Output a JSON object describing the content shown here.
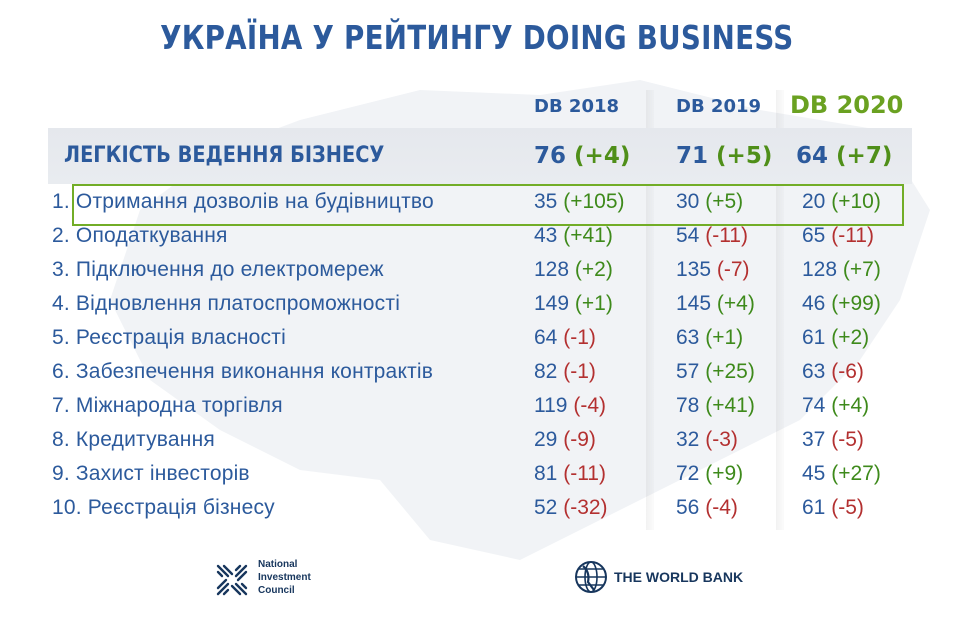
{
  "title": "УКРАЇНА У РЕЙТИНГУ DOING BUSINESS",
  "columns": [
    "DB 2018",
    "DB 2019",
    "DB 2020"
  ],
  "colors": {
    "blue": "#2c5a9c",
    "green": "#6aa121",
    "positive": "#3e8a1b",
    "negative": "#b33030",
    "band": "#e7eaee"
  },
  "ease": {
    "label": "ЛЕГКІСТЬ ВЕДЕННЯ БІЗНЕСУ",
    "values": [
      {
        "rank": "76",
        "change": "(+4)"
      },
      {
        "rank": "71",
        "change": "(+5)"
      },
      {
        "rank": "64",
        "change": "(+7)"
      }
    ]
  },
  "rows": [
    {
      "num": "1.",
      "label": "Отримання дозволів на будівництво",
      "highlighted": true,
      "values": [
        {
          "rank": "35",
          "change": "(+105)",
          "sign": "pos"
        },
        {
          "rank": "30",
          "change": "(+5)",
          "sign": "pos"
        },
        {
          "rank": "20",
          "change": "(+10)",
          "sign": "pos"
        }
      ]
    },
    {
      "num": "2.",
      "label": "Оподаткування",
      "values": [
        {
          "rank": "43",
          "change": "(+41)",
          "sign": "pos"
        },
        {
          "rank": "54",
          "change": "(-11)",
          "sign": "neg"
        },
        {
          "rank": "65",
          "change": "(-11)",
          "sign": "neg"
        }
      ]
    },
    {
      "num": "3.",
      "label": "Підключення до електромереж",
      "values": [
        {
          "rank": "128",
          "change": "(+2)",
          "sign": "pos"
        },
        {
          "rank": "135",
          "change": "(-7)",
          "sign": "neg"
        },
        {
          "rank": "128",
          "change": "(+7)",
          "sign": "pos"
        }
      ]
    },
    {
      "num": "4.",
      "label": "Відновлення платоспроможності",
      "values": [
        {
          "rank": "149",
          "change": "(+1)",
          "sign": "pos"
        },
        {
          "rank": "145",
          "change": "(+4)",
          "sign": "pos"
        },
        {
          "rank": "46",
          "change": "(+99)",
          "sign": "pos"
        }
      ]
    },
    {
      "num": "5.",
      "label": "Реєстрація власності",
      "values": [
        {
          "rank": "64",
          "change": "(-1)",
          "sign": "neg"
        },
        {
          "rank": "63",
          "change": "(+1)",
          "sign": "pos"
        },
        {
          "rank": "61",
          "change": "(+2)",
          "sign": "pos"
        }
      ]
    },
    {
      "num": "6.",
      "label": "Забезпечення виконання контрактів",
      "values": [
        {
          "rank": "82",
          "change": "(-1)",
          "sign": "neg"
        },
        {
          "rank": "57",
          "change": "(+25)",
          "sign": "pos"
        },
        {
          "rank": "63",
          "change": "(-6)",
          "sign": "neg"
        }
      ]
    },
    {
      "num": "7.",
      "label": "Міжнародна торгівля",
      "values": [
        {
          "rank": "119",
          "change": "(-4)",
          "sign": "neg"
        },
        {
          "rank": "78",
          "change": "(+41)",
          "sign": "pos"
        },
        {
          "rank": "74",
          "change": "(+4)",
          "sign": "pos"
        }
      ]
    },
    {
      "num": "8.",
      "label": "Кредитування",
      "values": [
        {
          "rank": "29",
          "change": "(-9)",
          "sign": "neg"
        },
        {
          "rank": "32",
          "change": "(-3)",
          "sign": "neg"
        },
        {
          "rank": "37",
          "change": "(-5)",
          "sign": "neg"
        }
      ]
    },
    {
      "num": "9.",
      "label": "Захист інвесторів",
      "values": [
        {
          "rank": "81",
          "change": "(-11)",
          "sign": "neg"
        },
        {
          "rank": "72",
          "change": "(+9)",
          "sign": "pos"
        },
        {
          "rank": "45",
          "change": "(+27)",
          "sign": "pos"
        }
      ]
    },
    {
      "num": "10.",
      "label": "Реєстрація бізнесу",
      "values": [
        {
          "rank": "52",
          "change": "(-32)",
          "sign": "neg"
        },
        {
          "rank": "56",
          "change": "(-4)",
          "sign": "neg"
        },
        {
          "rank": "61",
          "change": "(-5)",
          "sign": "neg"
        }
      ]
    }
  ],
  "logos": {
    "nic": {
      "icon": "nic-logo-icon",
      "lines": [
        "National",
        "Investment",
        "Council"
      ]
    },
    "world_bank": {
      "icon": "globe-icon",
      "text": "THE WORLD BANK"
    }
  }
}
